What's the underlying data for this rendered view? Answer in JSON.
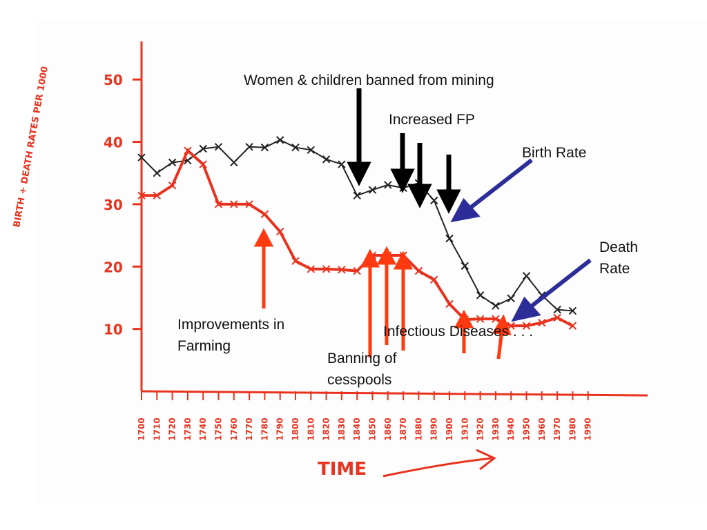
{
  "chart_data": {
    "type": "line",
    "y_label": "BIRTH + DEATH RATES PER 1000",
    "x_label": "TIME",
    "categories": [
      "1700",
      "1710",
      "1720",
      "1730",
      "1740",
      "1750",
      "1760",
      "1770",
      "1780",
      "1790",
      "1800",
      "1810",
      "1820",
      "1830",
      "1840",
      "1850",
      "1860",
      "1870",
      "1880",
      "1890",
      "1900",
      "1910",
      "1920",
      "1930",
      "1940",
      "1950",
      "1960",
      "1970",
      "1980",
      "1990"
    ],
    "series": [
      {
        "name": "Birth Rate",
        "color": "#222222",
        "values": [
          37.5,
          35,
          36.7,
          37,
          38.9,
          39.2,
          36.7,
          39.2,
          39.1,
          40.3,
          39.1,
          38.7,
          37.2,
          36.4,
          31.4,
          32.3,
          33.1,
          32.6,
          33.4,
          30.6,
          24.5,
          20.1,
          15.4,
          13.7,
          14.9,
          18.5,
          15.4,
          13.1,
          12.9,
          null
        ]
      },
      {
        "name": "Death Rate",
        "color": "#e8321e",
        "values": [
          31.4,
          31.4,
          33,
          38.6,
          36.4,
          30,
          30,
          30,
          28.4,
          25.6,
          20.9,
          19.6,
          19.6,
          19.5,
          19.3,
          21.8,
          21.8,
          21.8,
          19.3,
          17.9,
          14,
          11.5,
          11.6,
          11.6,
          10.5,
          10.5,
          11,
          11.8,
          10.5,
          null
        ]
      }
    ],
    "ylim": [
      0,
      56
    ],
    "yticks": [
      10,
      20,
      30,
      40,
      50
    ],
    "annotations": [
      "Women & children banned from mining",
      "Increased FP",
      "Birth Rate",
      "Death",
      "Rate",
      "Improvements in",
      "Farming",
      "Banning of",
      "cesspools",
      "Infectious Diseases . . ."
    ]
  }
}
